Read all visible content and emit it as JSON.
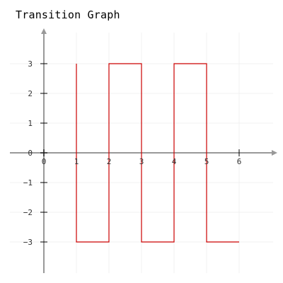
{
  "chart_data": {
    "type": "line",
    "title": "Transition Graph",
    "xlabel": "",
    "ylabel": "",
    "xlim": [
      -1,
      7
    ],
    "ylim": [
      -4,
      4
    ],
    "x_ticks": [
      "0",
      "1",
      "2",
      "3",
      "4",
      "5",
      "6"
    ],
    "y_ticks": [
      "3",
      "2",
      "1",
      "0",
      "-1",
      "-2",
      "-3"
    ],
    "grid": true,
    "series": [
      {
        "color": "#cc0000",
        "step": true,
        "points": [
          [
            1,
            3
          ],
          [
            1,
            -3
          ],
          [
            2,
            -3
          ],
          [
            2,
            3
          ],
          [
            3,
            3
          ],
          [
            3,
            -3
          ],
          [
            4,
            -3
          ],
          [
            4,
            3
          ],
          [
            5,
            3
          ],
          [
            5,
            -3
          ],
          [
            6,
            -3
          ]
        ]
      }
    ],
    "colors": {
      "axis": "#999999",
      "grid": "#f0f0f0",
      "line": "#cc0000"
    }
  }
}
